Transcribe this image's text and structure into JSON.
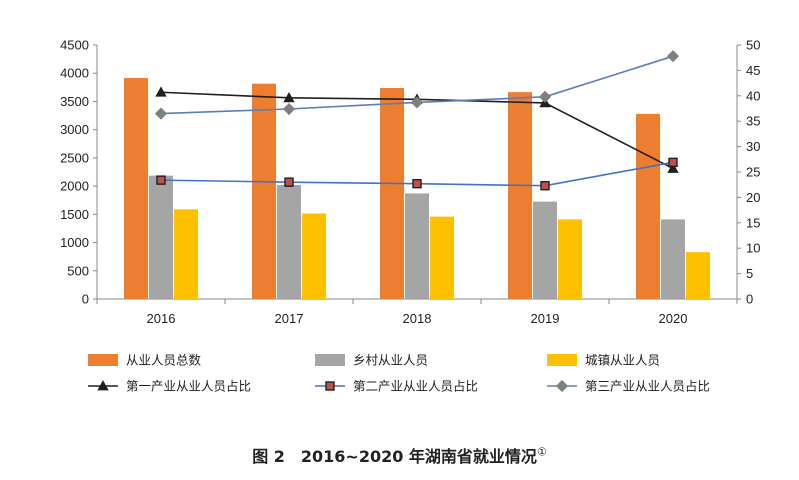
{
  "chart_data": {
    "type": "bar+line",
    "categories": [
      "2016",
      "2017",
      "2018",
      "2019",
      "2020"
    ],
    "bar_series": [
      {
        "name": "从业人员总数",
        "color": "#ED7D31",
        "values": [
          3915,
          3815,
          3738,
          3665,
          3280
        ]
      },
      {
        "name": "乡村从业人员",
        "color": "#A5A5A5",
        "values": [
          2185,
          2020,
          1870,
          1725,
          1410
        ]
      },
      {
        "name": "城镇从业人员",
        "color": "#FFC000",
        "values": [
          1590,
          1515,
          1460,
          1410,
          830
        ]
      }
    ],
    "line_series": [
      {
        "name": "第一产业从业人员占比",
        "color": "#1F1F1F",
        "marker": "triangle",
        "values": [
          40.7,
          39.6,
          39.3,
          38.6,
          25.7
        ]
      },
      {
        "name": "第二产业从业人员占比",
        "color": "#4472C4",
        "marker": "square",
        "marker_fill": "#C0504D",
        "values": [
          23.4,
          23.0,
          22.7,
          22.3,
          26.9
        ]
      },
      {
        "name": "第三产业从业人员占比",
        "color": "#5B7DB8",
        "marker": "diamond",
        "marker_fill": "#7F7F7F",
        "values": [
          36.5,
          37.4,
          38.7,
          39.8,
          47.8
        ]
      }
    ],
    "y_left": {
      "min": 0,
      "max": 4500,
      "ticks": [
        "0",
        "500",
        "1000",
        "1500",
        "2000",
        "2500",
        "3000",
        "3500",
        "4000",
        "4500"
      ]
    },
    "y_right": {
      "min": 0,
      "max": 50,
      "ticks": [
        "0",
        "5",
        "10",
        "15",
        "20",
        "25",
        "30",
        "35",
        "40",
        "45",
        "50"
      ]
    },
    "legend_position": "bottom",
    "caption": {
      "text": "图 2　2016~2020 年湖南省就业情况",
      "footnote": "①"
    }
  }
}
